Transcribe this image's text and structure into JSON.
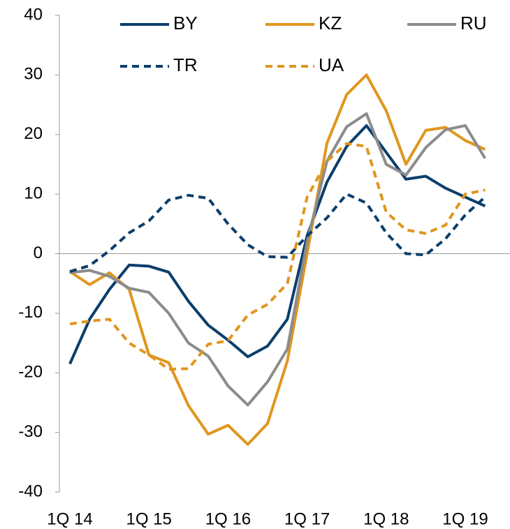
{
  "chart_data": {
    "type": "line",
    "categories": [
      "1Q 14",
      null,
      null,
      null,
      "1Q 15",
      null,
      null,
      null,
      "1Q 16",
      null,
      null,
      null,
      "1Q 17",
      null,
      null,
      null,
      "1Q 18",
      null,
      null,
      null,
      "1Q 19",
      null
    ],
    "series": [
      {
        "name": "BY",
        "color": "#0b3e6b",
        "style": "solid",
        "values": [
          -18.5,
          -11,
          -6,
          -1.9,
          -2.1,
          -3.1,
          -8,
          -12,
          -14.5,
          -17.3,
          -15.5,
          -11,
          3,
          12,
          18,
          21.5,
          17,
          12.5,
          13,
          11,
          9.5,
          8
        ]
      },
      {
        "name": "KZ",
        "color": "#e0961e",
        "style": "solid",
        "values": [
          -3,
          -5.2,
          -3.2,
          -6,
          -17,
          -18.3,
          -25.5,
          -30.3,
          -28.8,
          -32,
          -28.5,
          -18,
          0,
          18.5,
          26.7,
          30,
          24,
          15,
          20.7,
          21.2,
          19,
          17.5
        ]
      },
      {
        "name": "RU",
        "color": "#8c8c8c",
        "style": "solid",
        "values": [
          -3.2,
          -2.8,
          -3.8,
          -5.8,
          -6.5,
          -10,
          -15,
          -17.2,
          -22.2,
          -25.4,
          -21.5,
          -16,
          2,
          15.5,
          21.3,
          23.5,
          15,
          13.2,
          17.8,
          20.8,
          21.5,
          16
        ]
      },
      {
        "name": "TR",
        "color": "#0b3e6b",
        "style": "dashed",
        "values": [
          -3,
          -2,
          0.5,
          3.5,
          5.5,
          9,
          9.8,
          9.3,
          5,
          1.5,
          -0.5,
          -0.6,
          3,
          6,
          10,
          8.5,
          3.5,
          0,
          -0.2,
          2.5,
          6.5,
          9.5
        ]
      },
      {
        "name": "UA",
        "color": "#e0961e",
        "style": "dashed",
        "values": [
          -11.8,
          -11.3,
          -11,
          -15,
          -17,
          -19.4,
          -19.3,
          -15.2,
          -14.6,
          -10.3,
          -8.5,
          -5,
          9.5,
          15.5,
          18.5,
          18,
          7,
          4,
          3.4,
          4.8,
          10,
          10.7
        ]
      }
    ],
    "ylim": [
      -40,
      40
    ],
    "yticks": [
      -40,
      -30,
      -20,
      -10,
      0,
      10,
      20,
      30,
      40
    ]
  }
}
